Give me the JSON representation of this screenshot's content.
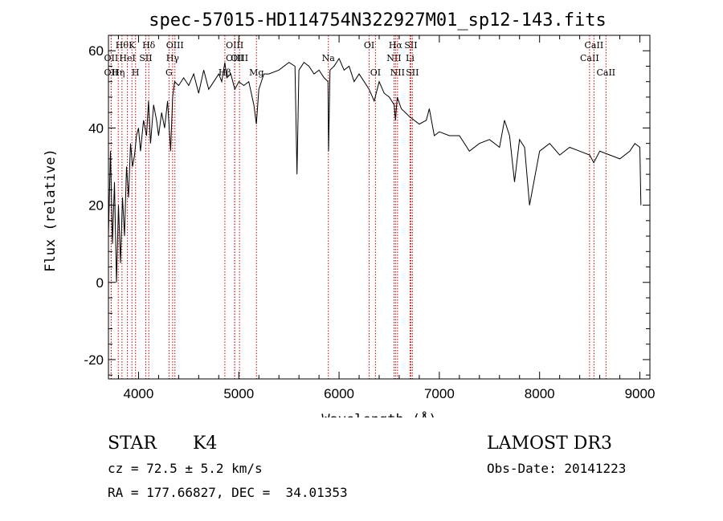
{
  "chart_data": {
    "type": "line",
    "title": "spec-57015-HD114754N322927M01_sp12-143.fits",
    "xlabel": "Wavelength (Å)",
    "ylabel": "Flux (relative)",
    "xlim": [
      3700,
      9100
    ],
    "ylim": [
      -25,
      64
    ],
    "xticks": [
      4000,
      5000,
      6000,
      7000,
      8000,
      9000
    ],
    "yticks": [
      -20,
      0,
      20,
      40,
      60
    ],
    "line_color": "#000000",
    "marker_color": "#cc0000",
    "grid": false,
    "series": [
      {
        "x": [
          3700,
          3720,
          3740,
          3760,
          3780,
          3800,
          3820,
          3840,
          3860,
          3880,
          3900,
          3920,
          3940,
          3960,
          3980,
          4000,
          4020,
          4050,
          4080,
          4100,
          4120,
          4150,
          4180,
          4200,
          4230,
          4260,
          4290,
          4320,
          4340,
          4360,
          4400,
          4450,
          4500,
          4550,
          4600,
          4650,
          4700,
          4750,
          4800,
          4830,
          4861,
          4880,
          4920,
          4960,
          5000,
          5050,
          5100,
          5150,
          5175,
          5200,
          5250,
          5300,
          5400,
          5500,
          5560,
          5580,
          5600,
          5650,
          5700,
          5750,
          5800,
          5850,
          5890,
          5895,
          5910,
          5950,
          6000,
          6050,
          6100,
          6150,
          6200,
          6250,
          6300,
          6350,
          6400,
          6450,
          6500,
          6550,
          6563,
          6580,
          6620,
          6700,
          6800,
          6870,
          6900,
          6950,
          7000,
          7100,
          7200,
          7300,
          7400,
          7500,
          7600,
          7650,
          7700,
          7750,
          7800,
          7850,
          7900,
          8000,
          8100,
          8200,
          8300,
          8400,
          8500,
          8540,
          8600,
          8700,
          8800,
          8900,
          8950,
          9000,
          9010
        ],
        "y": [
          12,
          34,
          10,
          26,
          0,
          20,
          5,
          22,
          12,
          30,
          22,
          36,
          30,
          33,
          38,
          40,
          34,
          42,
          38,
          47,
          36,
          46,
          42,
          38,
          44,
          40,
          47,
          34,
          48,
          52,
          51,
          53,
          51,
          54,
          49,
          55,
          50,
          52,
          54,
          52,
          57,
          53,
          54,
          50,
          52,
          51,
          52,
          46,
          41,
          50,
          54,
          54,
          55,
          57,
          56,
          28,
          55,
          57,
          56,
          54,
          55,
          53,
          52,
          34,
          55,
          56,
          58,
          55,
          56,
          52,
          54,
          52,
          50,
          47,
          52,
          49,
          48,
          46,
          42,
          48,
          45,
          43,
          41,
          42,
          45,
          38,
          39,
          38,
          38,
          34,
          36,
          37,
          35,
          42,
          38,
          26,
          37,
          35,
          20,
          34,
          36,
          33,
          35,
          34,
          33,
          31,
          34,
          33,
          32,
          34,
          36,
          35,
          20
        ]
      }
    ],
    "lines": [
      {
        "wl": 3727,
        "label": "OII",
        "row": 2
      },
      {
        "wl": 3727,
        "label": "OII",
        "row": 3
      },
      {
        "wl": 3798,
        "label": "Hη",
        "row": 3
      },
      {
        "wl": 3835,
        "label": "Hθ",
        "row": 1
      },
      {
        "wl": 3889,
        "label": "HeI",
        "row": 2
      },
      {
        "wl": 3934,
        "label": "K",
        "row": 1
      },
      {
        "wl": 3970,
        "label": "H",
        "row": 3
      },
      {
        "wl": 4072,
        "label": "SII",
        "row": 2
      },
      {
        "wl": 4102,
        "label": "Hδ",
        "row": 1
      },
      {
        "wl": 4304,
        "label": "G",
        "row": 3
      },
      {
        "wl": 4340,
        "label": "Hγ",
        "row": 2
      },
      {
        "wl": 4363,
        "label": "OIII",
        "row": 1
      },
      {
        "wl": 4861,
        "label": "Hβ",
        "row": 3
      },
      {
        "wl": 4959,
        "label": "OIII",
        "row": 1
      },
      {
        "wl": 4959,
        "label": "OIII",
        "row": 2
      },
      {
        "wl": 5007,
        "label": "OIII",
        "row": 2
      },
      {
        "wl": 5176,
        "label": "Mg",
        "row": 3
      },
      {
        "wl": 5893,
        "label": "Na",
        "row": 2
      },
      {
        "wl": 6300,
        "label": "OI",
        "row": 1
      },
      {
        "wl": 6363,
        "label": "OI",
        "row": 3
      },
      {
        "wl": 6548,
        "label": "NII",
        "row": 2
      },
      {
        "wl": 6563,
        "label": "Hα",
        "row": 1
      },
      {
        "wl": 6583,
        "label": "NII",
        "row": 3
      },
      {
        "wl": 6708,
        "label": "Li",
        "row": 2
      },
      {
        "wl": 6716,
        "label": "SII",
        "row": 1
      },
      {
        "wl": 6731,
        "label": "SII",
        "row": 3
      },
      {
        "wl": 8498,
        "label": "CaII",
        "row": 2
      },
      {
        "wl": 8542,
        "label": "CaII",
        "row": 1
      },
      {
        "wl": 8662,
        "label": "CaII",
        "row": 3
      }
    ]
  },
  "info": {
    "class": "STAR",
    "subclass": "K4",
    "survey": "LAMOST DR3",
    "cz": "cz = 72.5 ± 5.2 km/s",
    "obs_date": "Obs-Date: 20141223",
    "coords": "RA = 177.66827, DEC =  34.01353"
  }
}
